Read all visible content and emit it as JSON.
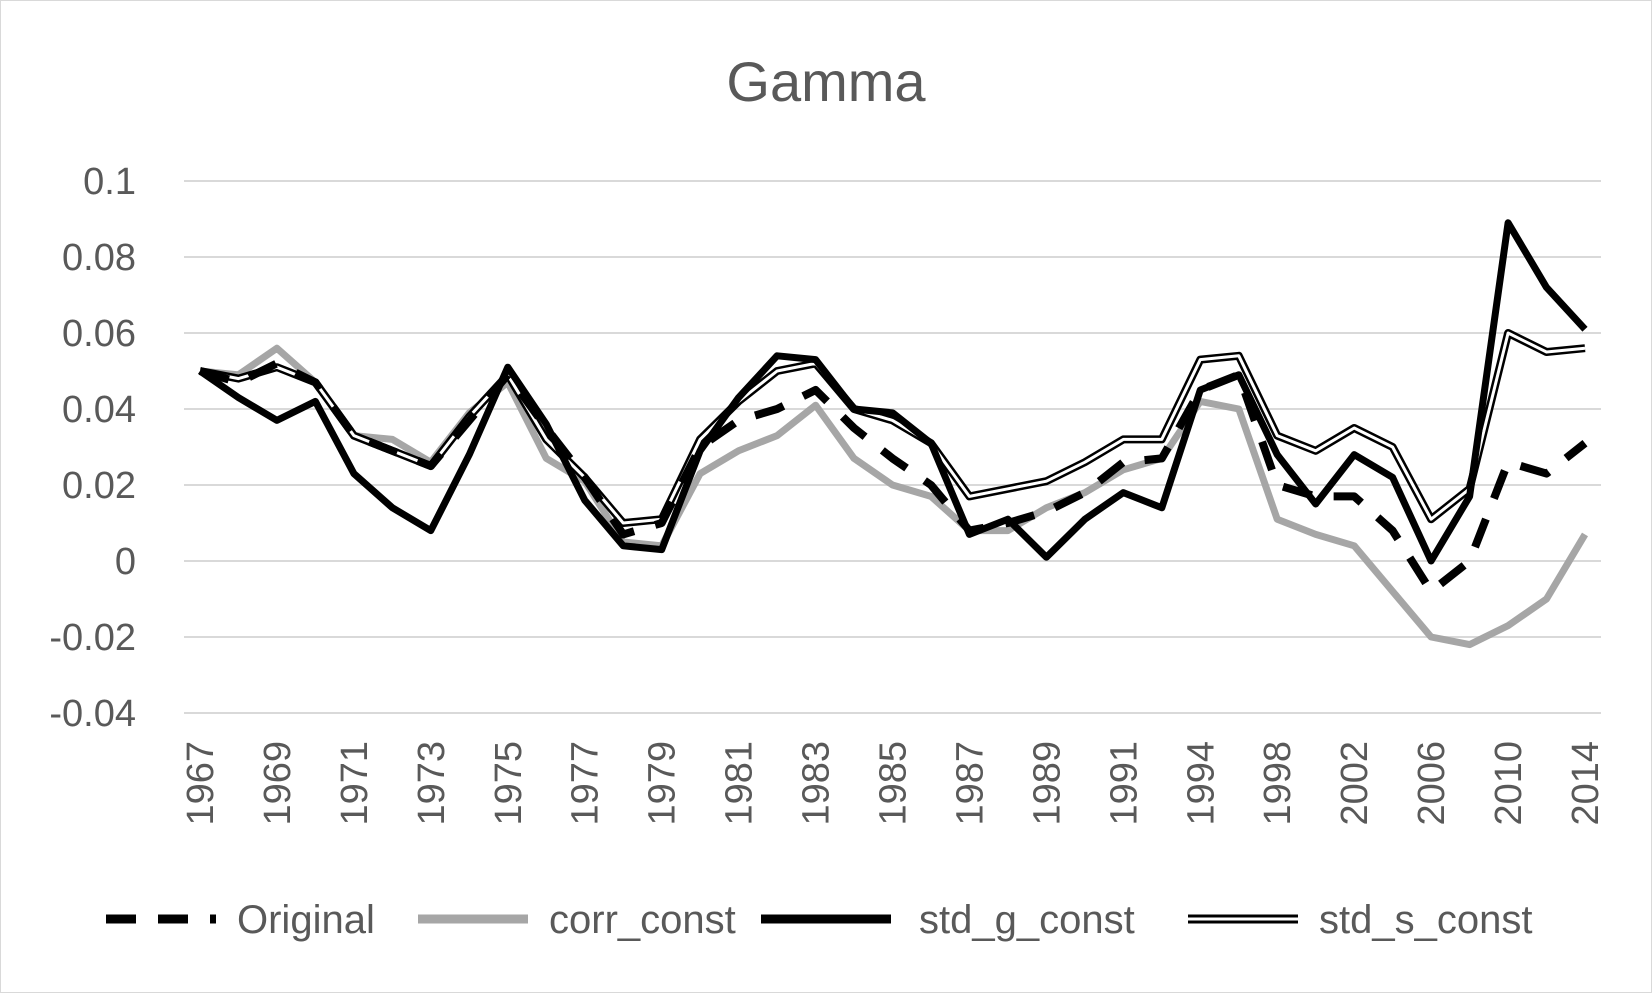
{
  "chart_data": {
    "type": "line",
    "title": "Gamma",
    "xlabel": "",
    "ylabel": "",
    "ylim": [
      -0.04,
      0.1
    ],
    "yticks": [
      "0.1",
      "0.08",
      "0.06",
      "0.04",
      "0.02",
      "0",
      "-0.02",
      "-0.04"
    ],
    "ytick_values": [
      0.1,
      0.08,
      0.06,
      0.04,
      0.02,
      0,
      -0.02,
      -0.04
    ],
    "grid": true,
    "legend_position": "bottom",
    "categories": [
      "1967",
      "1968",
      "1969",
      "1970",
      "1971",
      "1972",
      "1973",
      "1974",
      "1975",
      "1976",
      "1977",
      "1978",
      "1979",
      "1980",
      "1981",
      "1982",
      "1983",
      "1984",
      "1985",
      "1986",
      "1987",
      "1988",
      "1989",
      "1990",
      "1991",
      "1992",
      "1994",
      "1996",
      "1998",
      "2000",
      "2002",
      "2004",
      "2006",
      "2008",
      "2010",
      "2012",
      "2014"
    ],
    "xtick_labels": [
      "1967",
      "1969",
      "1971",
      "1973",
      "1975",
      "1977",
      "1979",
      "1981",
      "1983",
      "1985",
      "1987",
      "1989",
      "1991",
      "1994",
      "1998",
      "2002",
      "2006",
      "2010",
      "2014"
    ],
    "series": [
      {
        "name": "Original",
        "style": "dashed",
        "color": "#000000",
        "values": [
          0.05,
          0.047,
          0.052,
          0.047,
          0.033,
          0.029,
          0.025,
          0.037,
          0.049,
          0.035,
          0.022,
          0.007,
          0.01,
          0.03,
          0.037,
          0.04,
          0.045,
          0.035,
          0.027,
          0.02,
          0.008,
          0.01,
          0.013,
          0.018,
          0.026,
          0.027,
          0.045,
          0.049,
          0.02,
          0.017,
          0.017,
          0.008,
          -0.008,
          0.0,
          0.026,
          0.023,
          0.031
        ]
      },
      {
        "name": "corr_const",
        "style": "solid",
        "color": "#a6a6a6",
        "values": [
          0.05,
          0.049,
          0.056,
          0.047,
          0.033,
          0.032,
          0.026,
          0.039,
          0.047,
          0.027,
          0.021,
          0.005,
          0.004,
          0.023,
          0.029,
          0.033,
          0.041,
          0.027,
          0.02,
          0.017,
          0.008,
          0.008,
          0.014,
          0.018,
          0.024,
          0.027,
          0.042,
          0.04,
          0.011,
          0.007,
          0.004,
          -0.008,
          -0.02,
          -0.022,
          -0.017,
          -0.01,
          0.007
        ]
      },
      {
        "name": "std_g_const",
        "style": "solid",
        "color": "#000000",
        "values": [
          0.05,
          0.043,
          0.037,
          0.042,
          0.023,
          0.014,
          0.008,
          0.028,
          0.051,
          0.036,
          0.016,
          0.004,
          0.003,
          0.029,
          0.043,
          0.054,
          0.053,
          0.04,
          0.039,
          0.031,
          0.007,
          0.011,
          0.001,
          0.011,
          0.018,
          0.014,
          0.045,
          0.049,
          0.028,
          0.015,
          0.028,
          0.022,
          0.0,
          0.017,
          0.089,
          0.072,
          0.061
        ]
      },
      {
        "name": "std_s_const",
        "style": "double",
        "color": "#000000",
        "values": [
          0.05,
          0.048,
          0.051,
          0.047,
          0.033,
          0.029,
          0.025,
          0.038,
          0.049,
          0.032,
          0.022,
          0.01,
          0.011,
          0.032,
          0.042,
          0.05,
          0.052,
          0.04,
          0.037,
          0.031,
          0.017,
          0.019,
          0.021,
          0.026,
          0.032,
          0.032,
          0.053,
          0.054,
          0.033,
          0.029,
          0.035,
          0.03,
          0.011,
          0.019,
          0.06,
          0.055,
          0.056
        ]
      }
    ]
  }
}
